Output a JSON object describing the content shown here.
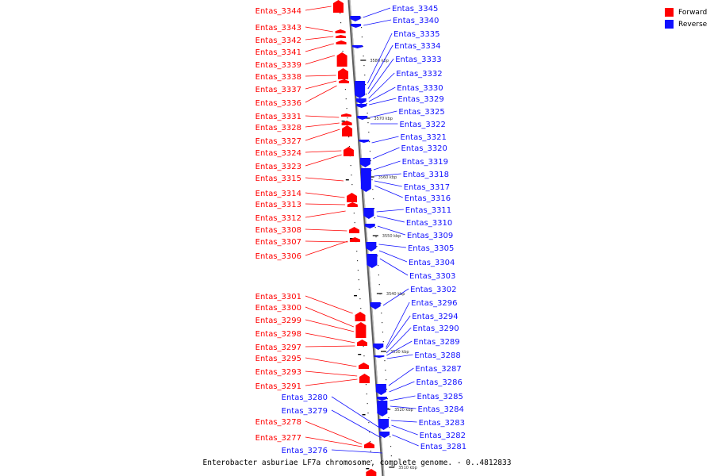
{
  "colors": {
    "forward": "#ff0000",
    "reverse": "#1010ff",
    "backbone": "#8a8a8a",
    "tick": "#000000"
  },
  "legend": [
    {
      "label": "Forward",
      "color": "#ff0000"
    },
    {
      "label": "Reverse",
      "color": "#1010ff"
    }
  ],
  "caption": "Enterobacter asburiae LF7a chromosome, complete genome. - 0..4812833",
  "scale_labels": [
    "3580 kbp",
    "3570 kbp",
    "3560 kbp",
    "3550 kbp",
    "3540 kbp",
    "3530 kbp",
    "3520 kbp",
    "3510 kbp"
  ],
  "forward_labels": [
    "Entas_3344",
    "Entas_3343",
    "Entas_3342",
    "Entas_3341",
    "Entas_3339",
    "Entas_3338",
    "Entas_3337",
    "Entas_3336",
    "Entas_3331",
    "Entas_3328",
    "Entas_3327",
    "Entas_3324",
    "Entas_3323",
    "Entas_3315",
    "Entas_3314",
    "Entas_3313",
    "Entas_3312",
    "Entas_3308",
    "Entas_3307",
    "Entas_3306",
    "Entas_3301",
    "Entas_3300",
    "Entas_3299",
    "Entas_3298",
    "Entas_3297",
    "Entas_3295",
    "Entas_3293",
    "Entas_3291",
    "Entas_3278",
    "Entas_3277"
  ],
  "reverse_labels": [
    "Entas_3345",
    "Entas_3340",
    "Entas_3335",
    "Entas_3334",
    "Entas_3333",
    "Entas_3332",
    "Entas_3330",
    "Entas_3329",
    "Entas_3325",
    "Entas_3322",
    "Entas_3321",
    "Entas_3320",
    "Entas_3319",
    "Entas_3318",
    "Entas_3317",
    "Entas_3316",
    "Entas_3311",
    "Entas_3310",
    "Entas_3309",
    "Entas_3305",
    "Entas_3304",
    "Entas_3303",
    "Entas_3302",
    "Entas_3296",
    "Entas_3294",
    "Entas_3290",
    "Entas_3289",
    "Entas_3288",
    "Entas_3287",
    "Entas_3286",
    "Entas_3285",
    "Entas_3284",
    "Entas_3283",
    "Entas_3282",
    "Entas_3281",
    "Entas_3280",
    "Entas_3279",
    "Entas_3276"
  ]
}
